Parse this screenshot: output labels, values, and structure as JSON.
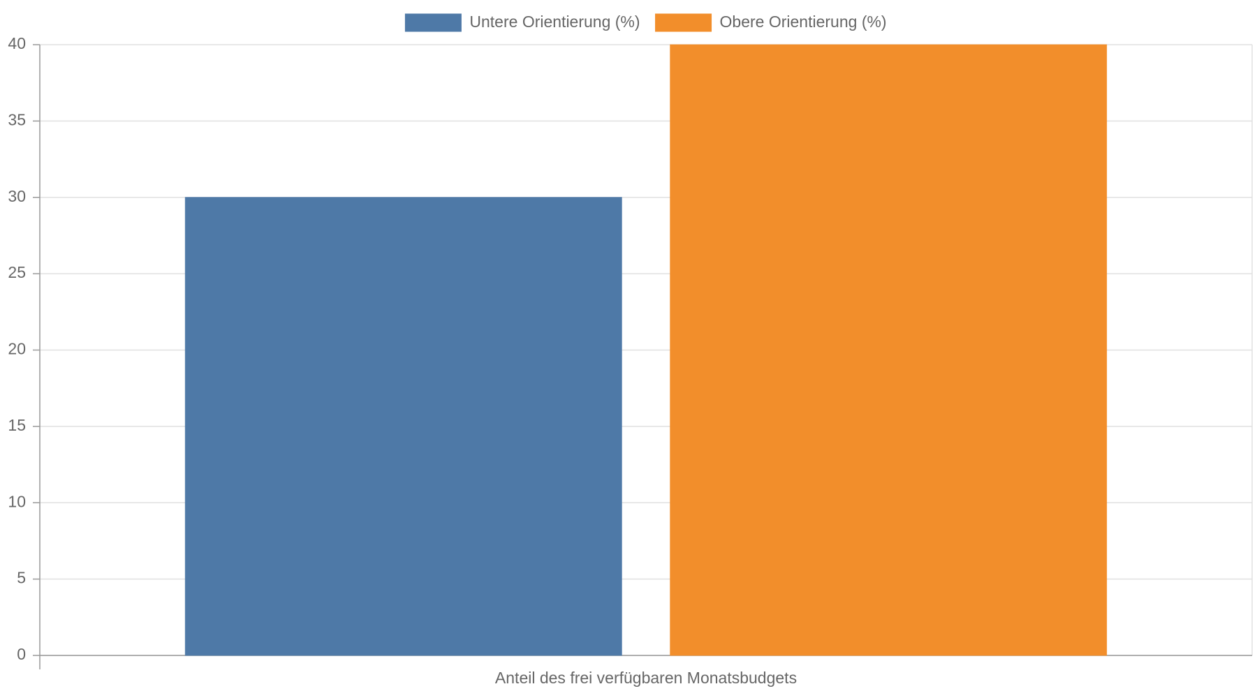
{
  "chart_data": {
    "type": "bar",
    "categories": [
      "Anteil des frei verfügbaren Monatsbudgets"
    ],
    "series": [
      {
        "name": "Untere Orientierung (%)",
        "color": "#4e79a7",
        "values": [
          30
        ]
      },
      {
        "name": "Obere Orientierung (%)",
        "color": "#f28e2b",
        "values": [
          40
        ]
      }
    ],
    "ylim": [
      0,
      40
    ],
    "yticks": [
      0,
      5,
      10,
      15,
      20,
      25,
      30,
      35,
      40
    ],
    "grid": true,
    "legend": "top"
  }
}
